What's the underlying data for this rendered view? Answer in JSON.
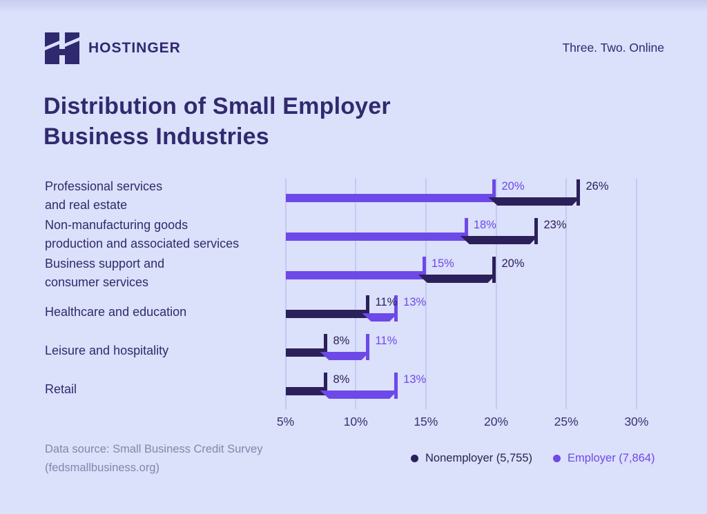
{
  "header": {
    "brand": "HOSTINGER",
    "tagline": "Three. Two. Online"
  },
  "title": {
    "line1": "Distribution of Small Employer",
    "line2": "Business Industries"
  },
  "chart_data": {
    "type": "bar",
    "orientation": "horizontal",
    "title": "Distribution of Small Employer Business Industries",
    "categories": [
      [
        "Professional services",
        "and real estate"
      ],
      [
        "Non-manufacturing goods",
        "production and associated services"
      ],
      [
        "Business support and",
        "consumer services"
      ],
      [
        "Healthcare and education"
      ],
      [
        "Leisure and hospitality"
      ],
      [
        "Retail"
      ]
    ],
    "series": [
      {
        "name": "Nonemployer (5,755)",
        "color": "#2b2059",
        "values": [
          26,
          23,
          20,
          11,
          8,
          8
        ]
      },
      {
        "name": "Employer (7,864)",
        "color": "#6d49e8",
        "values": [
          20,
          18,
          15,
          13,
          11,
          13
        ]
      }
    ],
    "value_suffix": "%",
    "axis": {
      "tick_labels": [
        "5%",
        "10%",
        "15%",
        "20%",
        "25%",
        "30%"
      ],
      "min": 5,
      "max": 30,
      "grid": true
    },
    "legend_position": "bottom-right"
  },
  "footer": {
    "source_line1": "Data source: Small Business Credit Survey",
    "source_line2": "(fedsmallbusiness.org)"
  },
  "colors": {
    "background": "#dbe0fb",
    "nonemployer": "#2b2059",
    "employer": "#6d49e8",
    "gridline": "#c4cbf2",
    "title_text": "#312a6e",
    "muted_text": "#8387a9"
  }
}
